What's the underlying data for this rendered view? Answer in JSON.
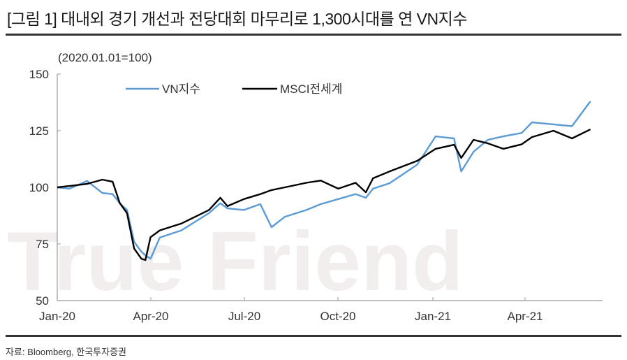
{
  "figure": {
    "title": "[그림 1] 대내외 경기 개선과 전당대회 마무리로 1,300시대를 연 VN지수",
    "source": "자료: Bloomberg, 한국투자증권",
    "watermark": "True Friend"
  },
  "chart_data": {
    "type": "line",
    "title": "[그림 1] 대내외 경기 개선과 전당대회 마무리로 1,300시대를 연 VN지수",
    "unit_note": "(2020.01.01=100)",
    "xlabel": "",
    "ylabel": "",
    "ylim": [
      50,
      150
    ],
    "yticks": [
      50,
      75,
      100,
      125,
      150
    ],
    "xticks": [
      "Jan-20",
      "Apr-20",
      "Jul-20",
      "Oct-20",
      "Jan-21",
      "Apr-21"
    ],
    "grid": false,
    "legend_position": "top-left inside",
    "colors": {
      "VN지수": "#5b9bd5",
      "MSCI전세계": "#000000"
    },
    "x": [
      "2020-01-01",
      "2020-01-13",
      "2020-01-30",
      "2020-02-14",
      "2020-02-24",
      "2020-03-02",
      "2020-03-09",
      "2020-03-16",
      "2020-03-23",
      "2020-03-27",
      "2020-04-01",
      "2020-04-10",
      "2020-05-01",
      "2020-05-28",
      "2020-06-08",
      "2020-06-15",
      "2020-07-01",
      "2020-07-17",
      "2020-07-28",
      "2020-08-10",
      "2020-08-31",
      "2020-09-14",
      "2020-10-01",
      "2020-10-18",
      "2020-10-28",
      "2020-11-04",
      "2020-11-20",
      "2020-12-17",
      "2021-01-04",
      "2021-01-22",
      "2021-01-29",
      "2021-02-10",
      "2021-02-24",
      "2021-03-11",
      "2021-03-29",
      "2021-04-08",
      "2021-04-29",
      "2021-05-17",
      "2021-06-04"
    ],
    "series": [
      {
        "name": "VN지수",
        "values": [
          100,
          99.4,
          102.8,
          97.5,
          97.0,
          93.0,
          90.0,
          76.0,
          71.6,
          70.0,
          68.5,
          77.8,
          81.0,
          88.6,
          93.0,
          90.7,
          90.0,
          92.6,
          82.4,
          87.0,
          90.0,
          92.6,
          94.8,
          97.0,
          95.4,
          99.4,
          101.8,
          110.0,
          122.5,
          121.6,
          107.0,
          115.7,
          121.0,
          122.5,
          124.0,
          128.7,
          127.8,
          127.0,
          138.0
        ]
      },
      {
        "name": "MSCI전세계",
        "values": [
          100,
          100.6,
          101.5,
          103.4,
          102.5,
          93.0,
          88.6,
          73.0,
          68.5,
          67.9,
          78.0,
          81.0,
          84.0,
          90.0,
          95.4,
          91.7,
          94.8,
          97.0,
          98.8,
          100.0,
          102.0,
          103.0,
          99.4,
          102.0,
          97.8,
          104.0,
          107.0,
          111.7,
          117.0,
          118.8,
          113.0,
          121.0,
          119.4,
          117.0,
          119.0,
          122.2,
          125.0,
          121.6,
          125.6
        ]
      }
    ]
  },
  "axes": {
    "unit_note": "(2020.01.01=100)",
    "y_labels": [
      "150",
      "125",
      "100",
      "75",
      "50"
    ],
    "x_labels": [
      "Jan-20",
      "Apr-20",
      "Jul-20",
      "Oct-20",
      "Jan-21",
      "Apr-21"
    ]
  },
  "legend": {
    "items": [
      {
        "label": "VN지수",
        "color": "#5b9bd5"
      },
      {
        "label": "MSCI전세계",
        "color": "#000000"
      }
    ]
  }
}
